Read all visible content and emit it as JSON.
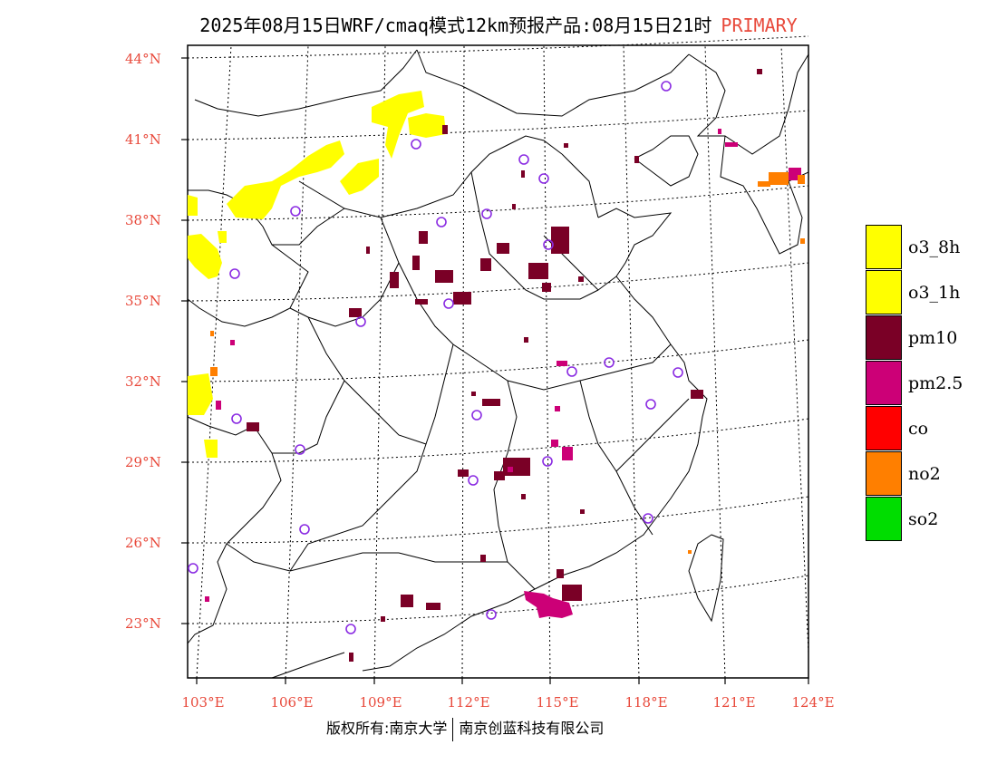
{
  "title": {
    "main": "2025年08月15日WRF/cmaq模式12km预报产品:08月15日21时",
    "tag": "PRIMARY"
  },
  "axes": {
    "lat_labels": [
      "44°N",
      "41°N",
      "38°N",
      "35°N",
      "32°N",
      "29°N",
      "26°N",
      "23°N"
    ],
    "lon_labels": [
      "103°E",
      "106°E",
      "109°E",
      "112°E",
      "115°E",
      "118°E",
      "121°E",
      "124°E"
    ]
  },
  "legend": [
    {
      "label": "o3_8h",
      "color": "#ffff00"
    },
    {
      "label": "o3_1h",
      "color": "#ffff00"
    },
    {
      "label": "pm10",
      "color": "#7a0026"
    },
    {
      "label": "pm2.5",
      "color": "#cc0077"
    },
    {
      "label": "co",
      "color": "#ff0000"
    },
    {
      "label": "no2",
      "color": "#ff7f00"
    },
    {
      "label": "so2",
      "color": "#00dd00"
    }
  ],
  "footer": {
    "left": "版权所有:南京大学",
    "right": "南京创蓝科技有限公司"
  }
}
